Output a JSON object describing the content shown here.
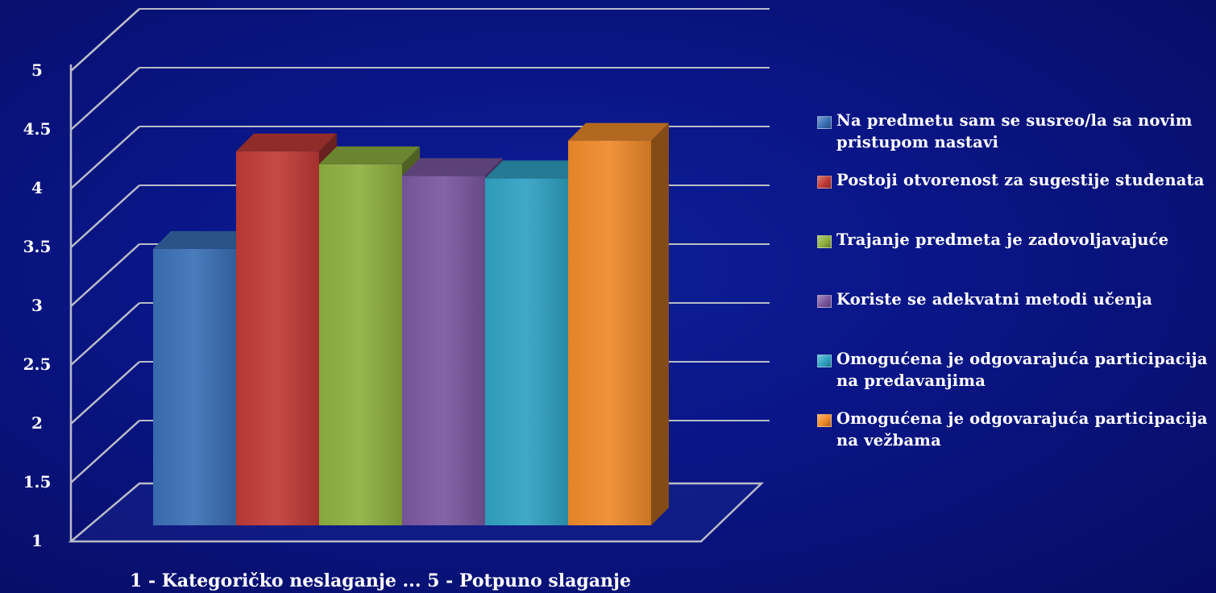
{
  "chart_data": {
    "type": "bar",
    "xlabel": "1 - Kategoričko neslaganje ... 5 - Potpuno slaganje",
    "ylim": [
      1,
      5
    ],
    "yticks": [
      "1",
      "1.5",
      "2",
      "2.5",
      "3",
      "3.5",
      "4",
      "4.5",
      "5"
    ],
    "grid": true,
    "legend_position": "right",
    "series": [
      {
        "name": "Na predmetu sam se susreo/la sa novim pristupom nastavi",
        "value": 3.35,
        "color": "#3a6fb5"
      },
      {
        "name": "Postoji otvorenost za sugestije studenata",
        "value": 4.18,
        "color": "#c03a36"
      },
      {
        "name": "Trajanje predmeta je zadovoljavajuće",
        "value": 4.07,
        "color": "#8db03f"
      },
      {
        "name": "Koriste se adekvatni metodi učenja",
        "value": 3.97,
        "color": "#7a569e"
      },
      {
        "name": "Omogućena je odgovarajuća participacija na predavanjima",
        "value": 3.95,
        "color": "#2fa2c2"
      },
      {
        "name": "Omogućena je odgovarajuća participacija na vežbama",
        "value": 4.27,
        "color": "#ef8a2a"
      }
    ]
  }
}
